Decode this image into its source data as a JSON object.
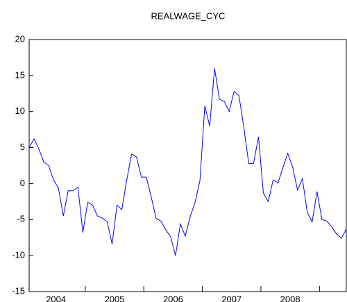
{
  "chart_data": {
    "type": "line",
    "title": "REALWAGE_CYC",
    "categories": [
      null,
      null,
      null,
      null,
      null,
      null,
      "2004",
      null,
      null,
      null,
      null,
      null,
      null,
      null,
      null,
      null,
      null,
      null,
      "2005",
      null,
      null,
      null,
      null,
      null,
      null,
      null,
      null,
      null,
      null,
      null,
      "2006",
      null,
      null,
      null,
      null,
      null,
      null,
      null,
      null,
      null,
      null,
      null,
      "2007",
      null,
      null,
      null,
      null,
      null,
      null,
      null,
      null,
      null,
      null,
      null,
      "2008",
      null,
      null,
      null,
      null,
      null,
      null,
      null,
      null,
      null,
      null,
      null
    ],
    "series": [
      {
        "name": "REALWAGE_CYC",
        "color": "#0000ff",
        "values": [
          5.0,
          6.2,
          4.8,
          3.0,
          2.5,
          0.5,
          -0.6,
          -4.5,
          -1.0,
          -1.0,
          -0.5,
          -6.8,
          -2.6,
          -3.0,
          -4.5,
          -4.8,
          -5.3,
          -8.4,
          -3.0,
          -3.6,
          0.5,
          4.1,
          3.7,
          0.9,
          0.9,
          -1.8,
          -4.8,
          -5.2,
          -6.4,
          -7.4,
          -10.0,
          -5.6,
          -7.3,
          -4.6,
          -2.6,
          0.4,
          10.8,
          8.0,
          16.0,
          11.7,
          11.4,
          10.0,
          12.8,
          12.2,
          7.8,
          2.8,
          2.8,
          6.5,
          -1.3,
          -2.5,
          0.5,
          0.1,
          2.2,
          4.2,
          2.3,
          -0.9,
          0.7,
          -4.0,
          -5.3,
          -1.1,
          -5.0,
          -5.2,
          -6.0,
          -7.0,
          -7.6,
          -6.3
        ]
      }
    ],
    "ylim": [
      -15,
      20
    ],
    "yticks": [
      -15,
      -10,
      -5,
      0,
      5,
      10,
      15,
      20
    ],
    "grid": false
  }
}
